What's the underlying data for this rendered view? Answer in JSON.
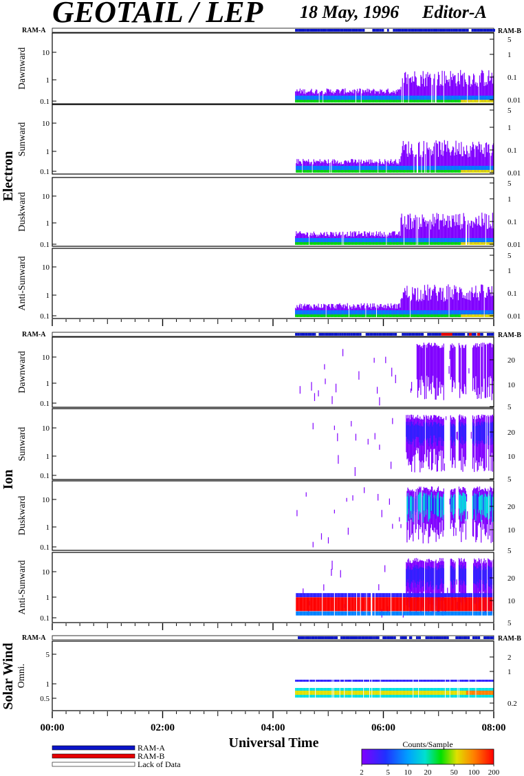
{
  "header": {
    "title": "GEOTAIL / LEP",
    "date": "18 May, 1996",
    "editor": "Editor-A"
  },
  "ram_labels": {
    "left": "RAM-A",
    "right": "RAM-B"
  },
  "groups": [
    {
      "label": "Electron",
      "panels": [
        "Dawnward",
        "Sunward",
        "Duskward",
        "Anti-Sunward"
      ]
    },
    {
      "label": "Ion",
      "panels": [
        "Dawnward",
        "Sunward",
        "Duskward",
        "Anti-Sunward"
      ]
    },
    {
      "label": "Solar Wind",
      "panels": [
        "Omni."
      ]
    }
  ],
  "x_axis": {
    "label": "Universal Time",
    "ticks": [
      "00:00",
      "02:00",
      "04:00",
      "06:00",
      "08:00"
    ]
  },
  "legend": {
    "items": [
      {
        "label": "RAM-A",
        "color": "#0a14c8"
      },
      {
        "label": "RAM-B",
        "color": "#e60000"
      },
      {
        "label": "Lack of Data",
        "color": "#ffffff"
      }
    ]
  },
  "colorbar": {
    "title": "Counts/Sample",
    "ticks": [
      "2",
      "5",
      "10",
      "20",
      "50",
      "100",
      "200"
    ]
  },
  "colors": {
    "ram_a": "#0a14c8",
    "ram_b": "#e60000",
    "spectrogram_scale": [
      "#8000ff",
      "#3020ff",
      "#0080ff",
      "#00e0e0",
      "#00e000",
      "#e0e000",
      "#ff8000",
      "#ff0000"
    ]
  },
  "chart_data": {
    "type": "heatmap",
    "x_range_hours": [
      0,
      8
    ],
    "data_start_hours": 4.4,
    "ram_b_intervals_hours": [
      [
        7.05,
        7.25
      ],
      [
        7.55,
        7.6
      ],
      [
        7.7,
        7.75
      ]
    ],
    "panels": [
      {
        "group": "Electron",
        "name": "Dawnward",
        "left_ticks": [
          "10",
          "1",
          "0.1"
        ],
        "right_ticks": [
          "5",
          "1",
          "0.1",
          "0.01"
        ],
        "y_scale": "log"
      },
      {
        "group": "Electron",
        "name": "Sunward",
        "left_ticks": [
          "10",
          "1",
          "0.1"
        ],
        "right_ticks": [
          "5",
          "1",
          "0.1",
          "0.01"
        ],
        "y_scale": "log"
      },
      {
        "group": "Electron",
        "name": "Duskward",
        "left_ticks": [
          "10",
          "1",
          "0.1"
        ],
        "right_ticks": [
          "5",
          "1",
          "0.1",
          "0.01"
        ],
        "y_scale": "log"
      },
      {
        "group": "Electron",
        "name": "Anti-Sunward",
        "left_ticks": [
          "10",
          "1",
          "0.1"
        ],
        "right_ticks": [
          "5",
          "1",
          "0.1",
          "0.01"
        ],
        "y_scale": "log"
      },
      {
        "group": "Ion",
        "name": "Dawnward",
        "left_ticks": [
          "10",
          "1",
          "0.1"
        ],
        "right_ticks": [
          "20",
          "10",
          "5"
        ],
        "y_scale": "log"
      },
      {
        "group": "Ion",
        "name": "Sunward",
        "left_ticks": [
          "10",
          "1",
          "0.1"
        ],
        "right_ticks": [
          "20",
          "10",
          "5"
        ],
        "y_scale": "log"
      },
      {
        "group": "Ion",
        "name": "Duskward",
        "left_ticks": [
          "10",
          "1",
          "0.1"
        ],
        "right_ticks": [
          "20",
          "10",
          "5"
        ],
        "y_scale": "log"
      },
      {
        "group": "Ion",
        "name": "Anti-Sunward",
        "left_ticks": [
          "10",
          "1",
          "0.1"
        ],
        "right_ticks": [
          "20",
          "10",
          "5"
        ],
        "y_scale": "log"
      },
      {
        "group": "Solar Wind",
        "name": "Omni.",
        "left_ticks": [
          "5",
          "1",
          "0.5"
        ],
        "right_ticks": [
          "2",
          "1",
          "0.2"
        ],
        "y_scale": "log"
      }
    ]
  }
}
